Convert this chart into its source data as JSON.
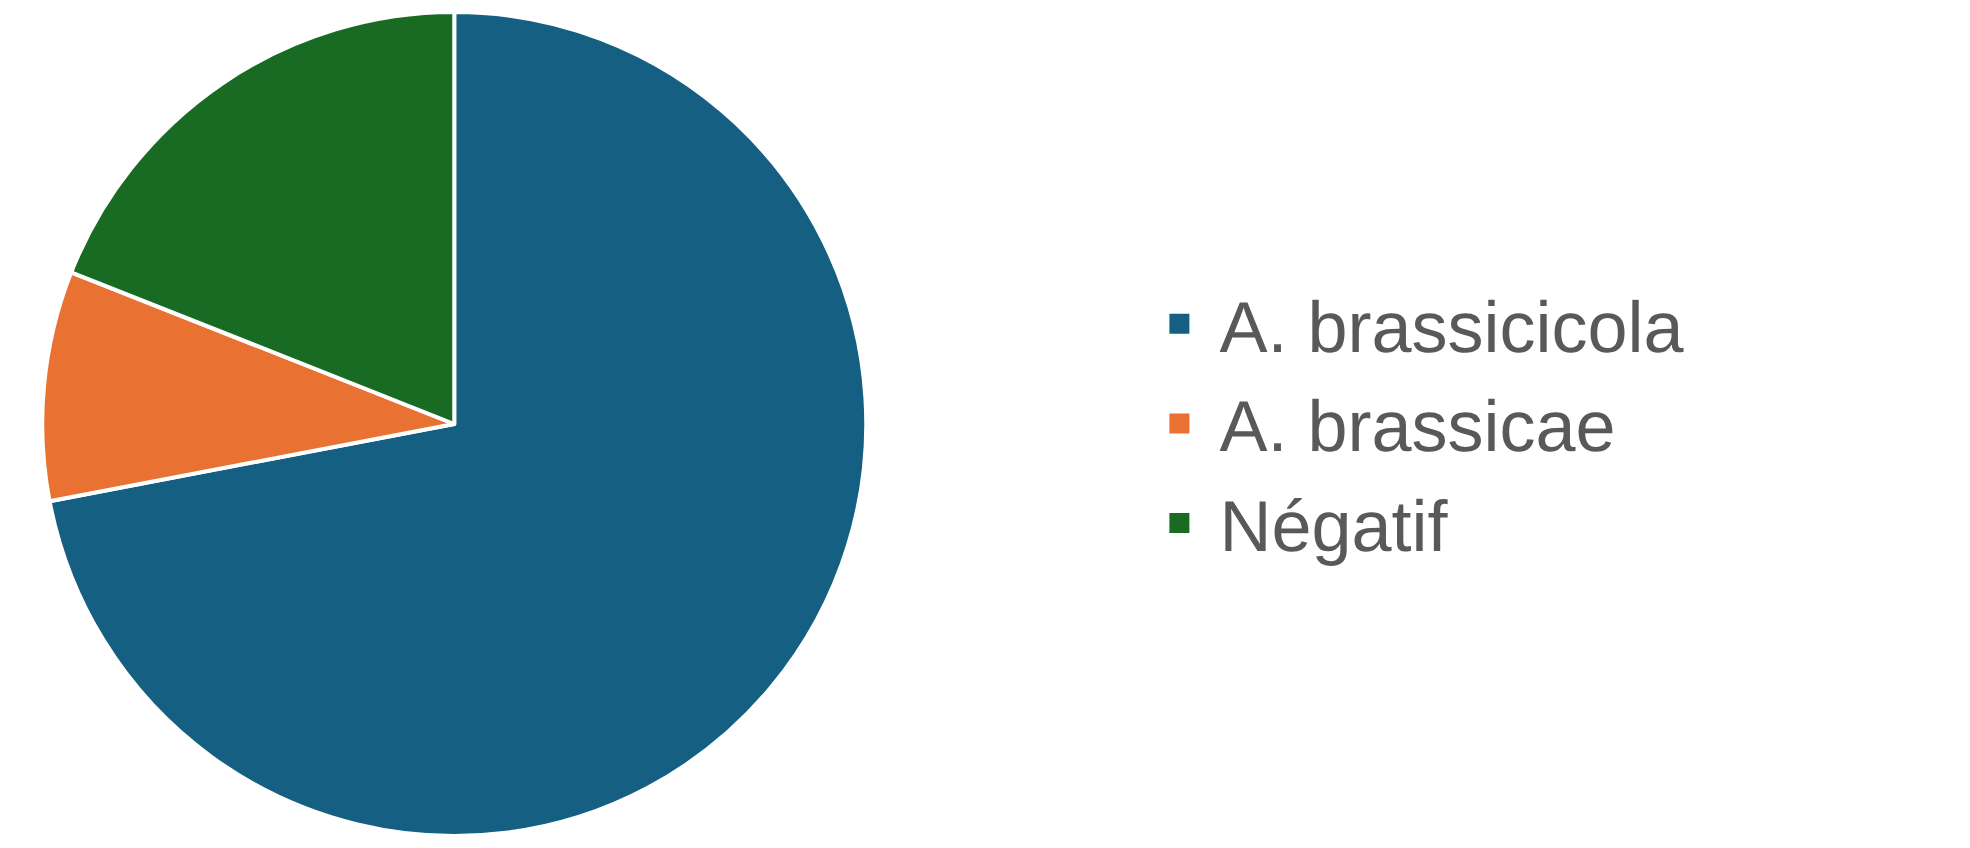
{
  "chart_data": {
    "type": "pie",
    "categories": [
      "A. brassicicola",
      "A. brassicae",
      "Négatif"
    ],
    "values": [
      72,
      9,
      19
    ],
    "colors": [
      "#156082",
      "#e97132",
      "#196b24"
    ],
    "legend": "right"
  }
}
